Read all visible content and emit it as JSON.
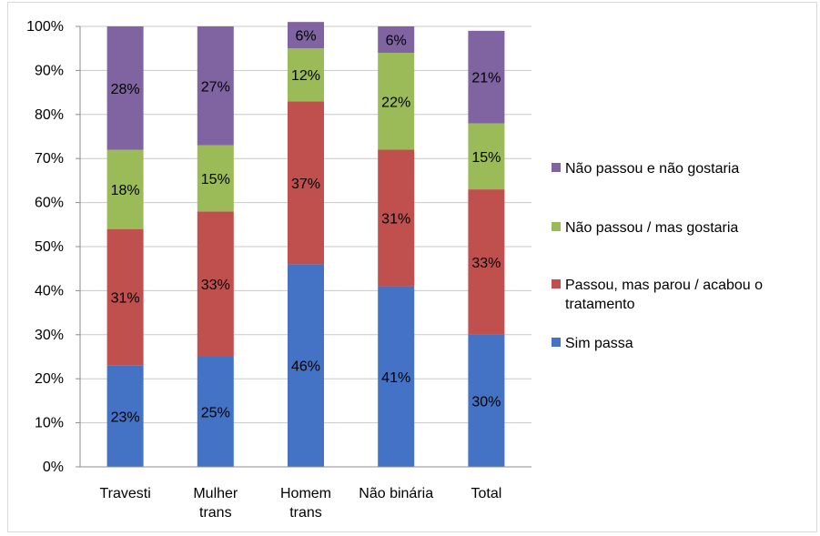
{
  "chart_data": {
    "type": "bar",
    "stacked": true,
    "percent": true,
    "categories": [
      [
        "Travesti"
      ],
      [
        "Mulher",
        "trans"
      ],
      [
        "Homem",
        "trans"
      ],
      [
        "Não binária"
      ],
      [
        "Total"
      ]
    ],
    "series": [
      {
        "name": "Sim passa",
        "color": "#4472c4",
        "values": [
          23,
          25,
          46,
          41,
          30
        ],
        "labels": [
          "23%",
          "25%",
          "46%",
          "41%",
          "30%"
        ]
      },
      {
        "name": "Passou, mas parou / acabou o tratamento",
        "legend_lines": [
          "Passou, mas parou / acabou o",
          "tratamento"
        ],
        "color": "#c0504d",
        "values": [
          31,
          33,
          37,
          31,
          33
        ],
        "labels": [
          "31%",
          "33%",
          "37%",
          "31%",
          "33%"
        ]
      },
      {
        "name": "Não passou / mas gostaria",
        "color": "#9bbb59",
        "values": [
          18,
          15,
          12,
          22,
          15
        ],
        "labels": [
          "18%",
          "15%",
          "12%",
          "22%",
          "15%"
        ]
      },
      {
        "name": "Não passou e não gostaria",
        "color": "#8064a2",
        "values": [
          28,
          27,
          6,
          6,
          21
        ],
        "labels": [
          "28%",
          "27%",
          "6%",
          "6%",
          "21%"
        ]
      }
    ],
    "ylim": [
      0,
      100
    ],
    "yticks": [
      "0%",
      "10%",
      "20%",
      "30%",
      "40%",
      "50%",
      "60%",
      "70%",
      "80%",
      "90%",
      "100%"
    ],
    "grid": true,
    "legend_position": "right",
    "legend_order": [
      3,
      2,
      1,
      0
    ]
  }
}
